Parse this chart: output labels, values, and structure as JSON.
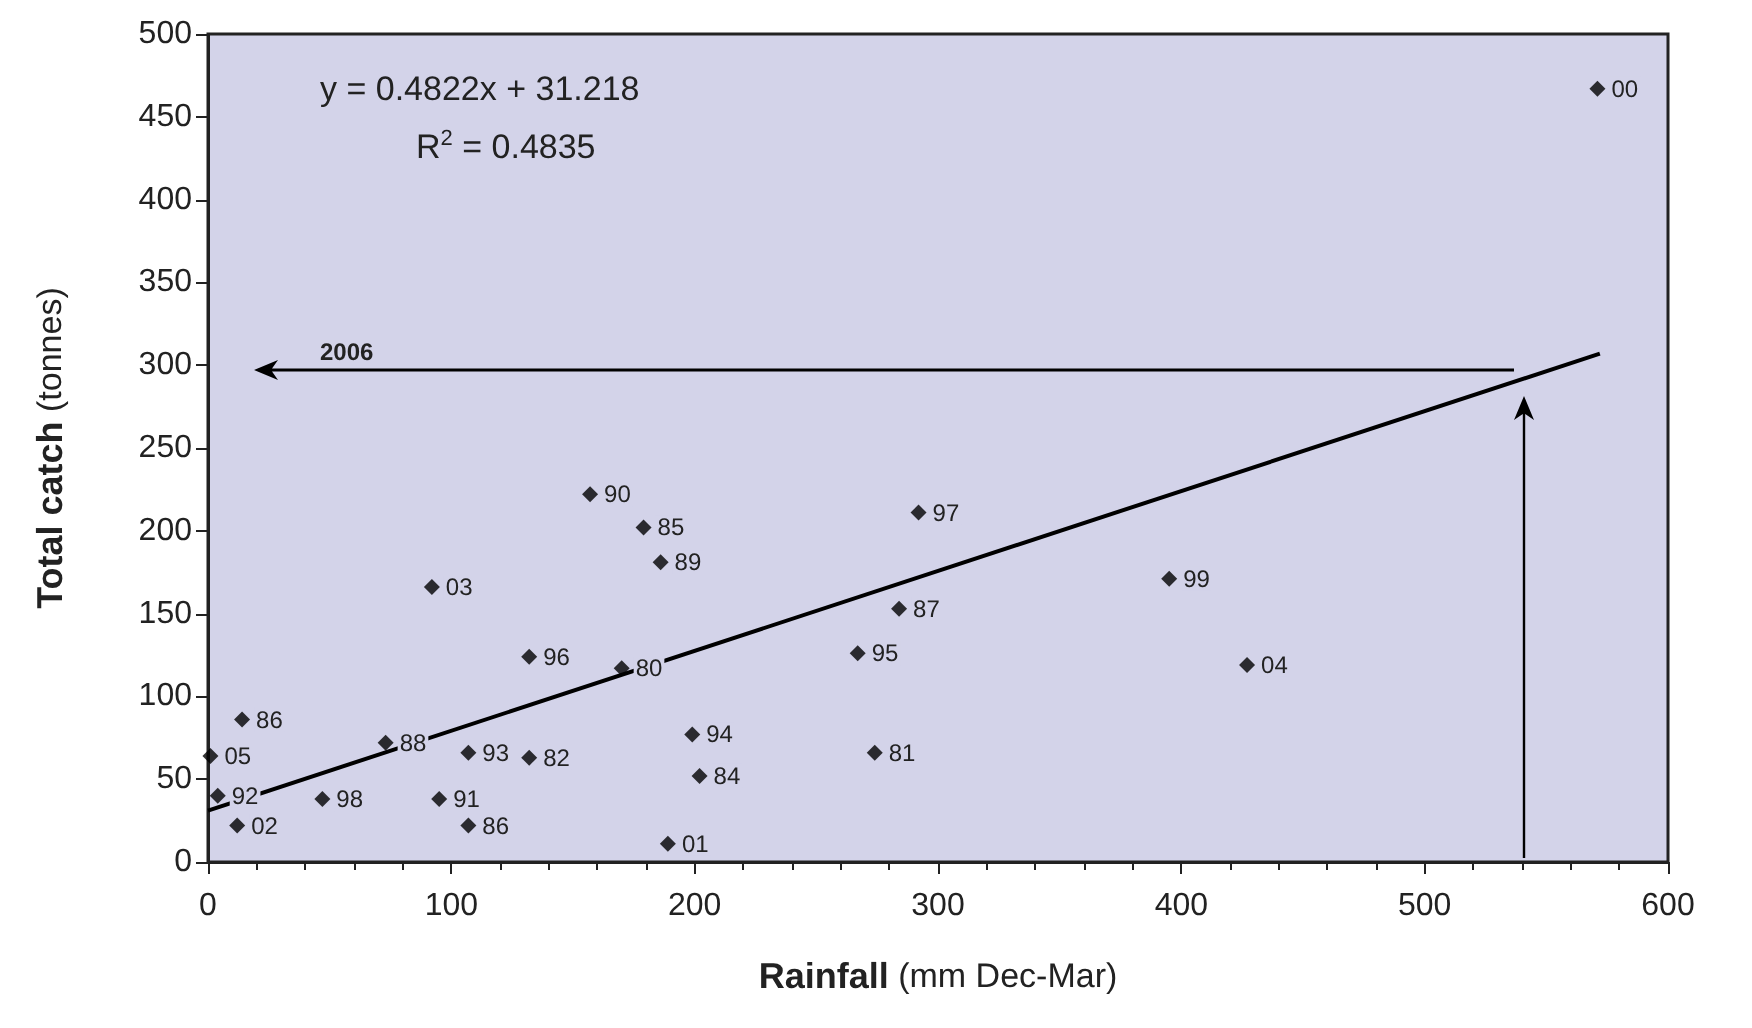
{
  "chart_data": {
    "type": "scatter",
    "xlabel": "Rainfall (mm Dec-Mar)",
    "ylabel": "Total catch (tonnes)",
    "xlim": [
      0,
      600
    ],
    "xticks": [
      0,
      100,
      200,
      300,
      400,
      500,
      600
    ],
    "ylim": [
      0,
      500
    ],
    "yticks": [
      0,
      50,
      100,
      150,
      200,
      250,
      300,
      350,
      400,
      450,
      500
    ],
    "grid": false,
    "marker": "diamond",
    "series": [
      {
        "color": "#000000",
        "x": [
          1,
          4,
          12,
          14,
          47,
          73,
          92,
          107,
          95,
          107,
          132,
          132,
          157,
          170,
          179,
          186,
          189,
          199,
          202,
          267,
          284,
          274,
          292,
          395,
          427,
          571
        ],
        "values": [
          64,
          40,
          22,
          86,
          38,
          72,
          166,
          66,
          38,
          22,
          124,
          63,
          222,
          117,
          202,
          181,
          11,
          77,
          52,
          126,
          153,
          66,
          211,
          171,
          119,
          467
        ]
      },
      {
        "type": "line",
        "color": "#000000",
        "line_style": "solid",
        "marker": "none",
        "x": [
          0,
          572
        ],
        "values": [
          31,
          307
        ]
      }
    ],
    "annotations": [
      "y = 0.4822x + 31.218",
      "R$^{2}$ = 0.4835",
      "2006",
      {
        "text": "05",
        "x": 1,
        "y": 64
      },
      {
        "text": "92",
        "x": 4,
        "y": 40
      },
      {
        "text": "02",
        "x": 12,
        "y": 22
      },
      {
        "text": "86",
        "x": 14,
        "y": 86
      },
      {
        "text": "98",
        "x": 47,
        "y": 38
      },
      {
        "text": "88",
        "x": 73,
        "y": 72
      },
      {
        "text": "03",
        "x": 92,
        "y": 166
      },
      {
        "text": "93",
        "x": 107,
        "y": 66
      },
      {
        "text": "91",
        "x": 95,
        "y": 38
      },
      {
        "text": "86",
        "x": 107,
        "y": 22
      },
      {
        "text": "96",
        "x": 132,
        "y": 124
      },
      {
        "text": "82",
        "x": 132,
        "y": 63
      },
      {
        "text": "90",
        "x": 157,
        "y": 222
      },
      {
        "text": "80",
        "x": 170,
        "y": 117
      },
      {
        "text": "85",
        "x": 179,
        "y": 202
      },
      {
        "text": "89",
        "x": 186,
        "y": 181
      },
      {
        "text": "01",
        "x": 189,
        "y": 11
      },
      {
        "text": "94",
        "x": 199,
        "y": 77
      },
      {
        "text": "84",
        "x": 202,
        "y": 52
      },
      {
        "text": "95",
        "x": 267,
        "y": 126
      },
      {
        "text": "87",
        "x": 284,
        "y": 153
      },
      {
        "text": "81",
        "x": 274,
        "y": 66
      },
      {
        "text": "97",
        "x": 292,
        "y": 211
      },
      {
        "text": "99",
        "x": 395,
        "y": 171
      },
      {
        "text": "04",
        "x": 427,
        "y": 119
      },
      {
        "text": "00",
        "x": 571,
        "y": 467
      }
    ]
  }
}
